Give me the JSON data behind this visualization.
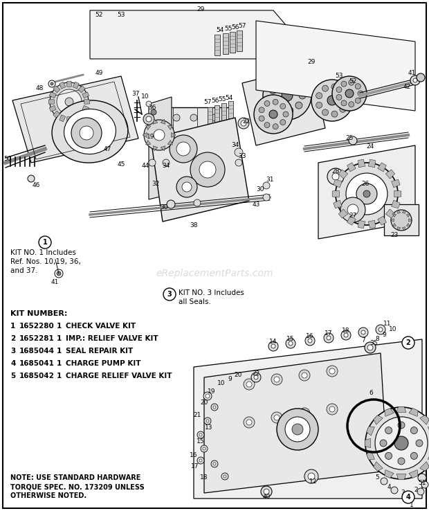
{
  "background_color": "#ffffff",
  "border_color": "#000000",
  "text_color": "#000000",
  "kit_number_header": "KIT NUMBER:",
  "kit_no1_note_line1": "KIT NO. 1 Includes",
  "kit_no1_note_line2": "Ref. Nos. 10,19, 36,",
  "kit_no1_note_line3": "and 37.",
  "kit_no3_note_line1": "KIT NO. 3 Includes",
  "kit_no3_note_line2": "all Seals.",
  "note_line1": "NOTE: USE STANDARD HARDWARE",
  "note_line2": "TORQUE SPEC. NO. 173209 UNLESS",
  "note_line3": "OTHERWISE NOTED.",
  "watermark": "eReplacementParts.com",
  "kits": [
    {
      "num": "1",
      "part": "1652280",
      "qty": "1",
      "desc": "CHECK VALVE KIT"
    },
    {
      "num": "2",
      "part": "1652281",
      "qty": "1",
      "desc": "IMP.: RELIEF VALVE KIT"
    },
    {
      "num": "3",
      "part": "1685044",
      "qty": "1",
      "desc": "SEAL REPAIR KIT"
    },
    {
      "num": "4",
      "part": "1685041",
      "qty": "1",
      "desc": "CHARGE PUMP KIT"
    },
    {
      "num": "5",
      "part": "1685042",
      "qty": "1",
      "desc": "CHARGE RELIEF VALVE KIT"
    }
  ],
  "fig_width": 6.2,
  "fig_height": 7.38,
  "dpi": 100
}
